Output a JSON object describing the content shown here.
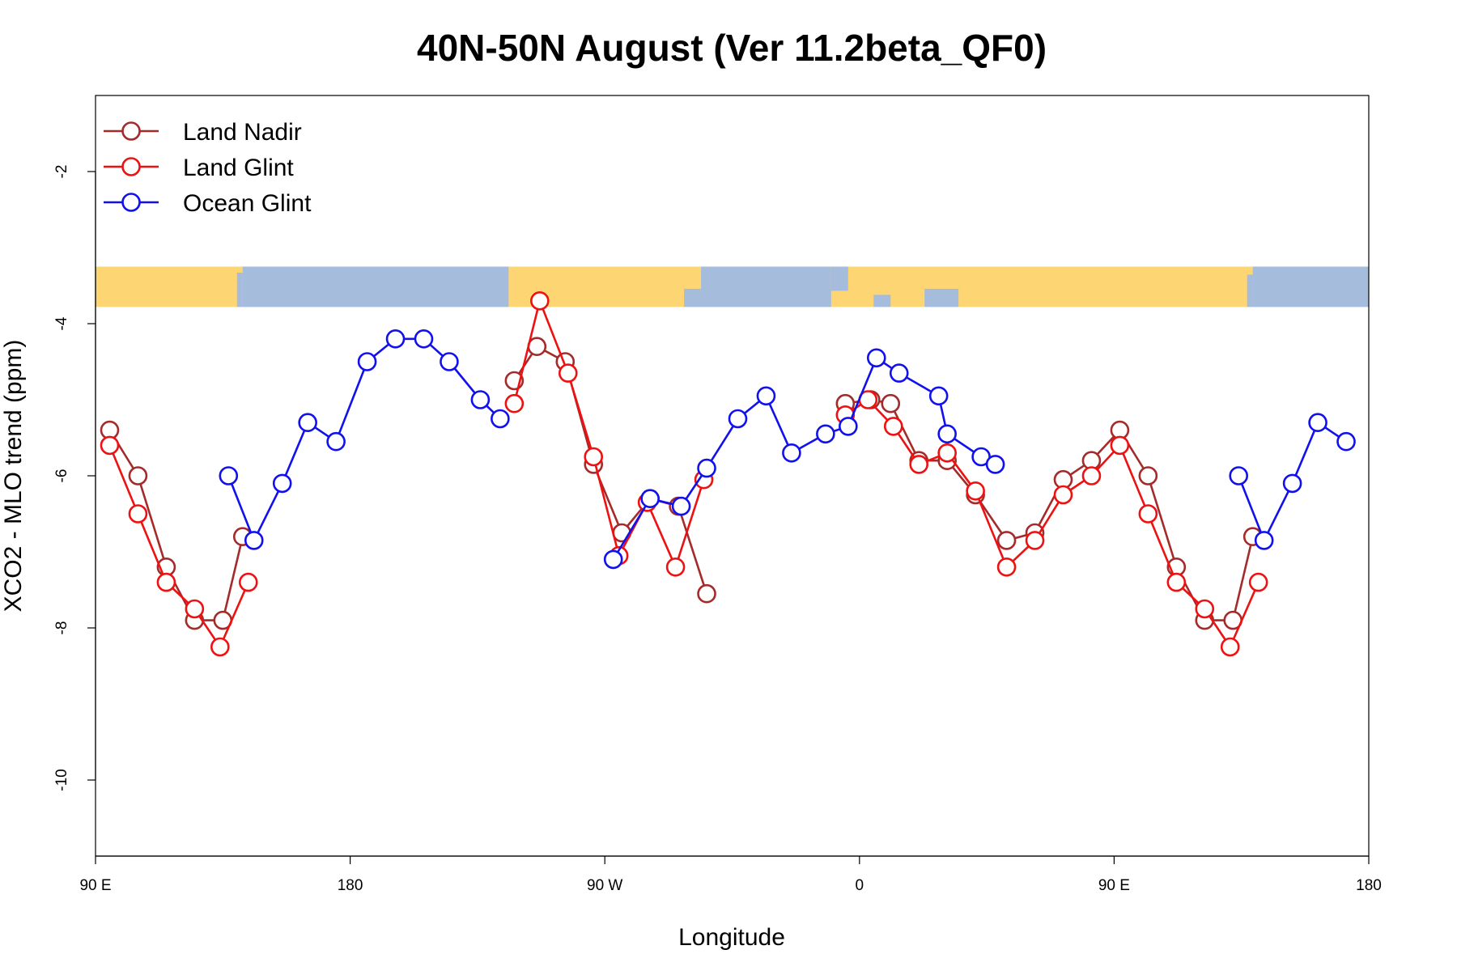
{
  "chart_data": {
    "type": "line",
    "title": "40N-50N August (Ver 11.2beta_QF0)",
    "xlabel": "Longitude",
    "ylabel": "XCO2 - MLO trend (ppm)",
    "xlim": [
      90,
      540
    ],
    "ylim": [
      -11,
      -1
    ],
    "x_ticks": [
      {
        "value": 90,
        "label": "90 E"
      },
      {
        "value": 180,
        "label": "180"
      },
      {
        "value": 270,
        "label": "90 W"
      },
      {
        "value": 360,
        "label": "0"
      },
      {
        "value": 450,
        "label": "90 E"
      },
      {
        "value": 540,
        "label": "180"
      }
    ],
    "y_ticks": [
      {
        "value": -2,
        "label": "-2"
      },
      {
        "value": -4,
        "label": "-4"
      },
      {
        "value": -6,
        "label": "-6"
      },
      {
        "value": -8,
        "label": "-8"
      },
      {
        "value": -10,
        "label": "-10"
      }
    ],
    "legend_position": "top-left",
    "map_strip": {
      "top": -3.25,
      "bottom": -3.78,
      "land_color": "#fdd673",
      "ocean_color": "#a6bcdc"
    },
    "series": [
      {
        "name": "Land Nadir",
        "color": "#a52a2a",
        "points": [
          [
            [
              95,
              -5.4
            ],
            [
              105,
              -6.0
            ],
            [
              115,
              -7.2
            ],
            [
              125,
              -7.9
            ],
            [
              135,
              -7.9
            ],
            [
              142,
              -6.8
            ]
          ],
          [
            [
              238,
              -4.75
            ],
            [
              246,
              -4.3
            ],
            [
              256,
              -4.5
            ],
            [
              266,
              -5.85
            ],
            [
              276,
              -6.75
            ],
            [
              286,
              -6.3
            ],
            [
              296,
              -6.4
            ],
            [
              306,
              -7.55
            ]
          ],
          [
            [
              355,
              -5.05
            ],
            [
              364,
              -5.0
            ],
            [
              371,
              -5.05
            ],
            [
              381,
              -5.8
            ],
            [
              391,
              -5.8
            ],
            [
              401,
              -6.25
            ],
            [
              412,
              -6.85
            ],
            [
              422,
              -6.75
            ],
            [
              432,
              -6.05
            ],
            [
              442,
              -5.8
            ],
            [
              452,
              -5.4
            ],
            [
              462,
              -6.0
            ],
            [
              472,
              -7.2
            ],
            [
              482,
              -7.9
            ],
            [
              492,
              -7.9
            ],
            [
              499,
              -6.8
            ]
          ]
        ]
      },
      {
        "name": "Land Glint",
        "color": "#ee1111",
        "points": [
          [
            [
              95,
              -5.6
            ],
            [
              105,
              -6.5
            ],
            [
              115,
              -7.4
            ],
            [
              125,
              -7.75
            ],
            [
              134,
              -8.25
            ],
            [
              144,
              -7.4
            ]
          ],
          [
            [
              238,
              -5.05
            ],
            [
              247,
              -3.7
            ],
            [
              257,
              -4.65
            ],
            [
              266,
              -5.75
            ],
            [
              275,
              -7.05
            ],
            [
              285,
              -6.35
            ],
            [
              295,
              -7.2
            ],
            [
              305,
              -6.05
            ]
          ],
          [
            [
              355,
              -5.2
            ],
            [
              363,
              -5.0
            ],
            [
              372,
              -5.35
            ],
            [
              381,
              -5.85
            ],
            [
              391,
              -5.7
            ],
            [
              401,
              -6.2
            ],
            [
              412,
              -7.2
            ],
            [
              422,
              -6.85
            ],
            [
              432,
              -6.25
            ],
            [
              442,
              -6.0
            ],
            [
              452,
              -5.6
            ],
            [
              462,
              -6.5
            ],
            [
              472,
              -7.4
            ],
            [
              482,
              -7.75
            ],
            [
              491,
              -8.25
            ],
            [
              501,
              -7.4
            ]
          ]
        ]
      },
      {
        "name": "Ocean Glint",
        "color": "#1111ee",
        "points": [
          [
            [
              137,
              -6.0
            ],
            [
              146,
              -6.85
            ],
            [
              156,
              -6.1
            ],
            [
              165,
              -5.3
            ],
            [
              175,
              -5.55
            ],
            [
              186,
              -4.5
            ],
            [
              196,
              -4.2
            ],
            [
              206,
              -4.2
            ],
            [
              215,
              -4.5
            ],
            [
              226,
              -5.0
            ],
            [
              233,
              -5.25
            ]
          ],
          [
            [
              273,
              -7.1
            ],
            [
              286,
              -6.3
            ],
            [
              297,
              -6.4
            ],
            [
              306,
              -5.9
            ],
            [
              317,
              -5.25
            ],
            [
              327,
              -4.95
            ],
            [
              336,
              -5.7
            ],
            [
              348,
              -5.45
            ],
            [
              356,
              -5.35
            ],
            [
              366,
              -4.45
            ],
            [
              374,
              -4.65
            ],
            [
              388,
              -4.95
            ],
            [
              391,
              -5.45
            ],
            [
              403,
              -5.75
            ],
            [
              408,
              -5.85
            ]
          ],
          [
            [
              494,
              -6.0
            ],
            [
              503,
              -6.85
            ],
            [
              513,
              -6.1
            ],
            [
              522,
              -5.3
            ],
            [
              532,
              -5.55
            ]
          ]
        ]
      }
    ]
  }
}
